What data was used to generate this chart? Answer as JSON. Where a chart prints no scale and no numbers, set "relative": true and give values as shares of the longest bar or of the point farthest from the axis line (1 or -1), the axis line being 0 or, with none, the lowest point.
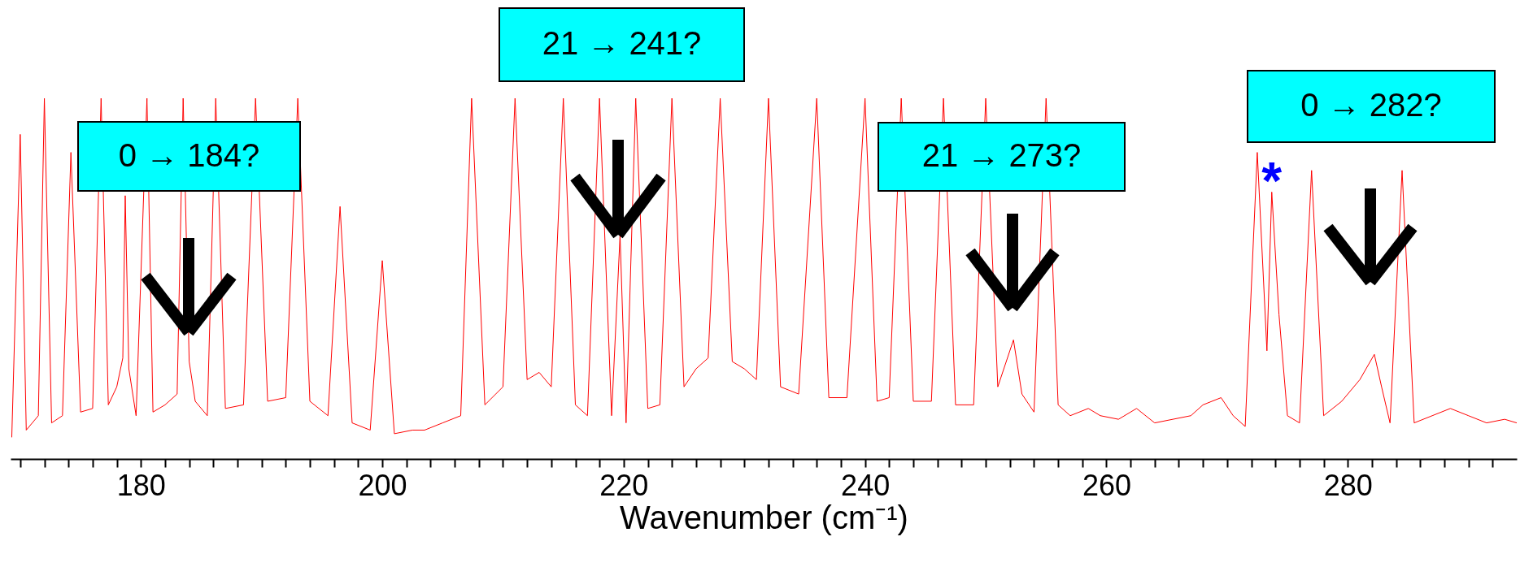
{
  "chart_data": {
    "type": "line",
    "relative": true,
    "xlabel": "Wavenumber (cm⁻¹)",
    "xlim": [
      169.2,
      294
    ],
    "xticks": [
      {
        "value": 170,
        "label": null
      },
      {
        "value": 172,
        "label": null
      },
      {
        "value": 174,
        "label": null
      },
      {
        "value": 176,
        "label": null
      },
      {
        "value": 178,
        "label": null
      },
      180,
      {
        "value": 182,
        "label": null
      },
      {
        "value": 184,
        "label": null
      },
      {
        "value": 186,
        "label": null
      },
      {
        "value": 188,
        "label": null
      },
      {
        "value": 190,
        "label": null
      },
      {
        "value": 192,
        "label": null
      },
      {
        "value": 194,
        "label": null
      },
      {
        "value": 196,
        "label": null
      },
      {
        "value": 198,
        "label": null
      },
      200,
      {
        "value": 202,
        "label": null
      },
      {
        "value": 204,
        "label": null
      },
      {
        "value": 206,
        "label": null
      },
      {
        "value": 208,
        "label": null
      },
      {
        "value": 210,
        "label": null
      },
      {
        "value": 212,
        "label": null
      },
      {
        "value": 214,
        "label": null
      },
      {
        "value": 216,
        "label": null
      },
      {
        "value": 218,
        "label": null
      },
      220,
      {
        "value": 222,
        "label": null
      },
      {
        "value": 224,
        "label": null
      },
      {
        "value": 226,
        "label": null
      },
      {
        "value": 228,
        "label": null
      },
      {
        "value": 230,
        "label": null
      },
      {
        "value": 232,
        "label": null
      },
      {
        "value": 234,
        "label": null
      },
      {
        "value": 236,
        "label": null
      },
      {
        "value": 238,
        "label": null
      },
      240,
      {
        "value": 242,
        "label": null
      },
      {
        "value": 244,
        "label": null
      },
      {
        "value": 246,
        "label": null
      },
      {
        "value": 248,
        "label": null
      },
      {
        "value": 250,
        "label": null
      },
      {
        "value": 252,
        "label": null
      },
      {
        "value": 254,
        "label": null
      },
      {
        "value": 256,
        "label": null
      },
      {
        "value": 258,
        "label": null
      },
      260,
      {
        "value": 262,
        "label": null
      },
      {
        "value": 264,
        "label": null
      },
      {
        "value": 266,
        "label": null
      },
      {
        "value": 268,
        "label": null
      },
      {
        "value": 270,
        "label": null
      },
      {
        "value": 272,
        "label": null
      },
      {
        "value": 274,
        "label": null
      },
      {
        "value": 276,
        "label": null
      },
      {
        "value": 278,
        "label": null
      },
      280,
      {
        "value": 282,
        "label": null
      },
      {
        "value": 284,
        "label": null
      },
      {
        "value": 286,
        "label": null
      },
      {
        "value": 288,
        "label": null
      },
      {
        "value": 290,
        "label": null
      },
      {
        "value": 292,
        "label": null
      }
    ],
    "grid": false,
    "marker": "none",
    "line_style": "solid",
    "series": [
      {
        "color": "#ff0000",
        "x": [
          169.3,
          170,
          170.5,
          171.5,
          172,
          172.6,
          173.5,
          174.2,
          175,
          176,
          176.7,
          177.3,
          178,
          178.5,
          178.7,
          179,
          179.6,
          180.5,
          181,
          182,
          183,
          183.5,
          184,
          184.5,
          185.5,
          186.2,
          187,
          188.5,
          189.5,
          190.5,
          192,
          193,
          194,
          195.5,
          196.5,
          197.5,
          199,
          200,
          201,
          202.5,
          203.5,
          205,
          206.5,
          207.4,
          208.5,
          210,
          211,
          212,
          213,
          214,
          215,
          216,
          217,
          218,
          219,
          219.7,
          220.2,
          221,
          222,
          223,
          224,
          225,
          226,
          227,
          228,
          229,
          230,
          231,
          232,
          233,
          234.5,
          236,
          237,
          238.5,
          240,
          241,
          242,
          243,
          244,
          245.5,
          246.5,
          247.5,
          249,
          250,
          251,
          252.3,
          253,
          254,
          255,
          256,
          257,
          258.5,
          259.5,
          261,
          262.5,
          264,
          265.5,
          267,
          268,
          269.5,
          270.5,
          271.5,
          272.5,
          273.3,
          273.7,
          274.3,
          275,
          276,
          277,
          278,
          279.5,
          281,
          282.2,
          282.8,
          283.5,
          284.5,
          285.5,
          287,
          288.5,
          290,
          291.5,
          293,
          294
        ],
        "values": [
          0.06,
          0.9,
          0.08,
          0.12,
          1,
          0.1,
          0.12,
          0.85,
          0.13,
          0.14,
          1,
          0.15,
          0.2,
          0.28,
          0.73,
          0.25,
          0.12,
          1,
          0.13,
          0.15,
          0.18,
          1,
          0.27,
          0.16,
          0.12,
          1,
          0.14,
          0.15,
          1,
          0.16,
          0.17,
          1,
          0.16,
          0.12,
          0.7,
          0.1,
          0.08,
          0.55,
          0.07,
          0.08,
          0.08,
          0.1,
          0.12,
          1,
          0.15,
          0.2,
          1,
          0.22,
          0.24,
          0.2,
          1,
          0.15,
          0.12,
          1,
          0.12,
          0.62,
          0.1,
          1,
          0.14,
          0.15,
          1,
          0.2,
          0.25,
          0.28,
          1,
          0.27,
          0.25,
          0.22,
          1,
          0.2,
          0.18,
          1,
          0.17,
          0.17,
          1,
          0.16,
          0.17,
          1,
          0.16,
          0.16,
          1,
          0.15,
          0.15,
          1,
          0.2,
          0.33,
          0.18,
          0.13,
          1,
          0.15,
          0.12,
          0.14,
          0.12,
          0.11,
          0.14,
          0.1,
          0.11,
          0.12,
          0.15,
          0.17,
          0.12,
          0.09,
          0.85,
          0.3,
          0.74,
          0.4,
          0.12,
          0.1,
          0.8,
          0.12,
          0.16,
          0.22,
          0.29,
          0.2,
          0.1,
          0.8,
          0.1,
          0.12,
          0.14,
          0.12,
          0.1,
          0.11,
          0.1
        ]
      }
    ],
    "annotations": [
      "0 → 184?",
      "21 → 241?",
      "21 → 273?",
      "0 → 282?",
      {
        "text": "*",
        "x": 273.7,
        "y": 0.74
      }
    ]
  }
}
